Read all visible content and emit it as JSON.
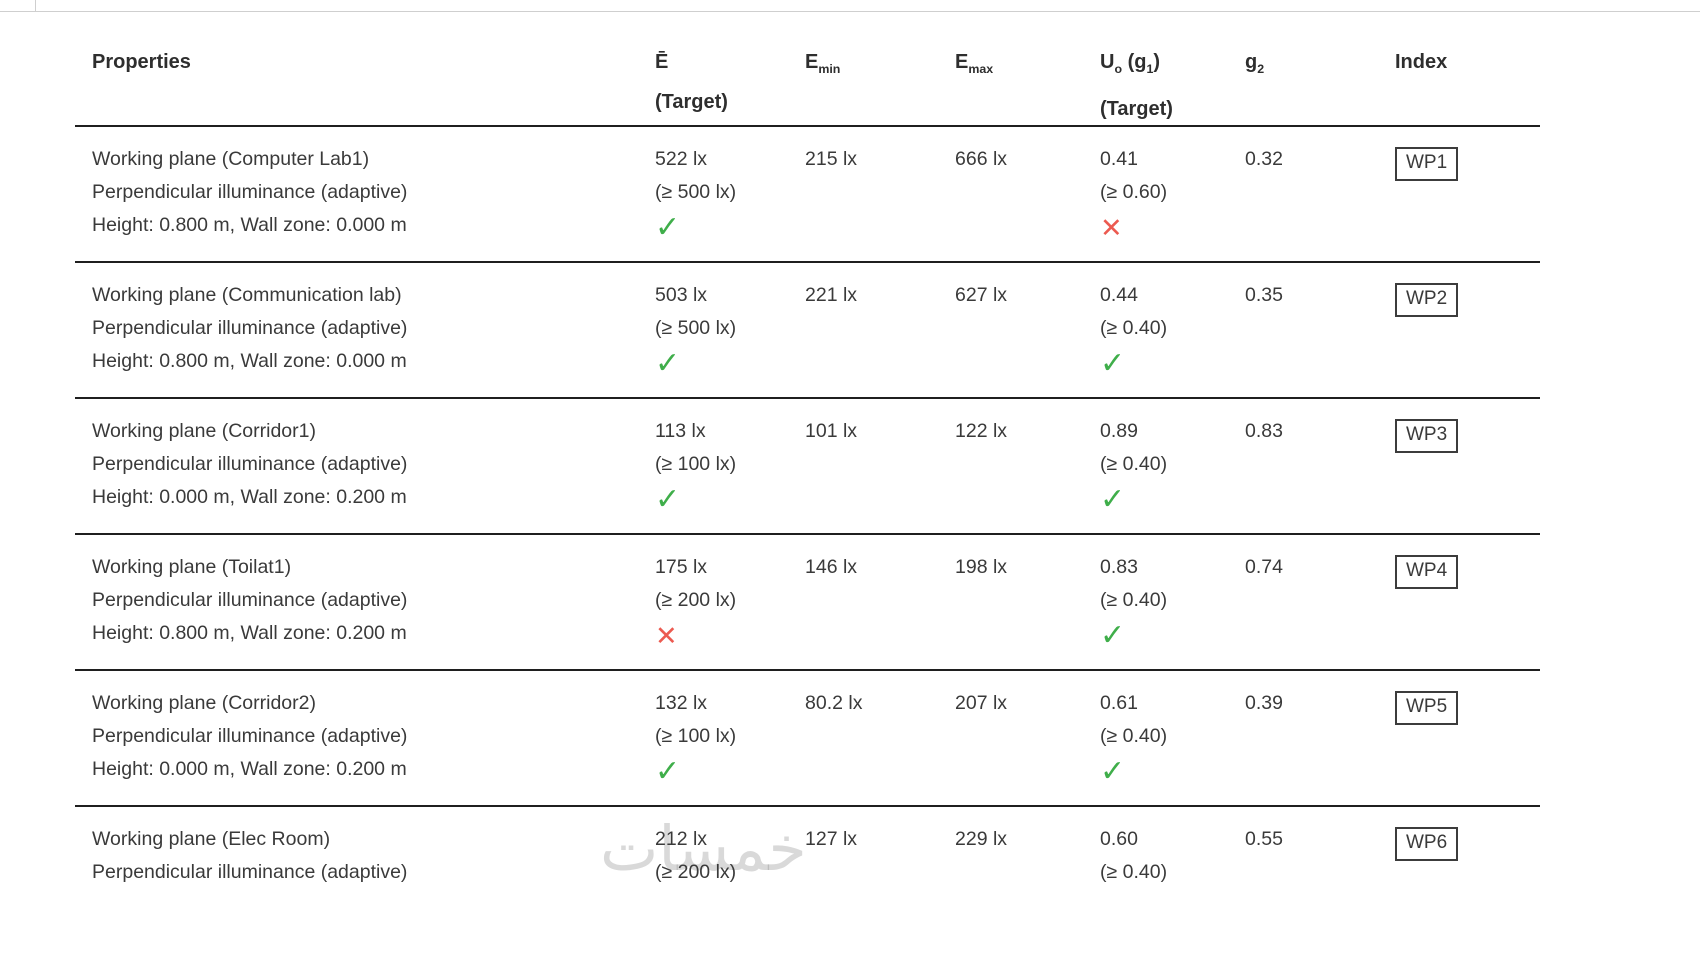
{
  "header": {
    "properties": "Properties",
    "e_avg": {
      "symbol": "Ē",
      "target": "(Target)"
    },
    "e_min": {
      "base": "E",
      "sub": "min"
    },
    "e_max": {
      "base": "E",
      "sub": "max"
    },
    "u0": {
      "base": "U",
      "sub": "o",
      "mid": " (g",
      "sub2": "1",
      "end": ")",
      "target": "(Target)"
    },
    "g2": {
      "base": "g",
      "sub": "2"
    },
    "index": "Index"
  },
  "icons": {
    "check": "✓",
    "cross": "✕"
  },
  "colors": {
    "pass": "#3fae4a",
    "fail": "#ec5a50",
    "text": "#3a3a3a",
    "rule": "#1f1f1f"
  },
  "watermark": "خمسات",
  "rows": [
    {
      "name": "Working plane (Computer Lab1)",
      "type": "Perpendicular illuminance (adaptive)",
      "geometry": "Height: 0.800 m, Wall zone: 0.000 m",
      "e_avg": "522 lx",
      "e_avg_target": "(≥ 500 lx)",
      "e_avg_status": "pass",
      "e_min": "215 lx",
      "e_max": "666 lx",
      "u0": "0.41",
      "u0_target": "(≥ 0.60)",
      "u0_status": "fail",
      "g2": "0.32",
      "index": "WP1"
    },
    {
      "name": "Working plane (Communication lab)",
      "type": "Perpendicular illuminance (adaptive)",
      "geometry": "Height: 0.800 m, Wall zone: 0.000 m",
      "e_avg": "503 lx",
      "e_avg_target": "(≥ 500 lx)",
      "e_avg_status": "pass",
      "e_min": "221 lx",
      "e_max": "627 lx",
      "u0": "0.44",
      "u0_target": "(≥ 0.40)",
      "u0_status": "pass",
      "g2": "0.35",
      "index": "WP2"
    },
    {
      "name": "Working plane (Corridor1)",
      "type": "Perpendicular illuminance (adaptive)",
      "geometry": "Height: 0.000 m, Wall zone: 0.200 m",
      "e_avg": "113 lx",
      "e_avg_target": "(≥ 100 lx)",
      "e_avg_status": "pass",
      "e_min": "101 lx",
      "e_max": "122 lx",
      "u0": "0.89",
      "u0_target": "(≥ 0.40)",
      "u0_status": "pass",
      "g2": "0.83",
      "index": "WP3"
    },
    {
      "name": "Working plane (Toilat1)",
      "type": "Perpendicular illuminance (adaptive)",
      "geometry": "Height: 0.800 m, Wall zone: 0.200 m",
      "e_avg": "175 lx",
      "e_avg_target": "(≥ 200 lx)",
      "e_avg_status": "fail",
      "e_min": "146 lx",
      "e_max": "198 lx",
      "u0": "0.83",
      "u0_target": "(≥ 0.40)",
      "u0_status": "pass",
      "g2": "0.74",
      "index": "WP4"
    },
    {
      "name": "Working plane (Corridor2)",
      "type": "Perpendicular illuminance (adaptive)",
      "geometry": "Height: 0.000 m, Wall zone: 0.200 m",
      "e_avg": "132 lx",
      "e_avg_target": "(≥ 100 lx)",
      "e_avg_status": "pass",
      "e_min": "80.2 lx",
      "e_max": "207 lx",
      "u0": "0.61",
      "u0_target": "(≥ 0.40)",
      "u0_status": "pass",
      "g2": "0.39",
      "index": "WP5"
    },
    {
      "name": "Working plane (Elec Room)",
      "type": "Perpendicular illuminance (adaptive)",
      "geometry": "",
      "e_avg": "212 lx",
      "e_avg_target": "(≥ 200 lx)",
      "e_avg_status": "none",
      "e_min": "127 lx",
      "e_max": "229 lx",
      "u0": "0.60",
      "u0_target": "(≥ 0.40)",
      "u0_status": "none",
      "g2": "0.55",
      "index": "WP6"
    }
  ]
}
